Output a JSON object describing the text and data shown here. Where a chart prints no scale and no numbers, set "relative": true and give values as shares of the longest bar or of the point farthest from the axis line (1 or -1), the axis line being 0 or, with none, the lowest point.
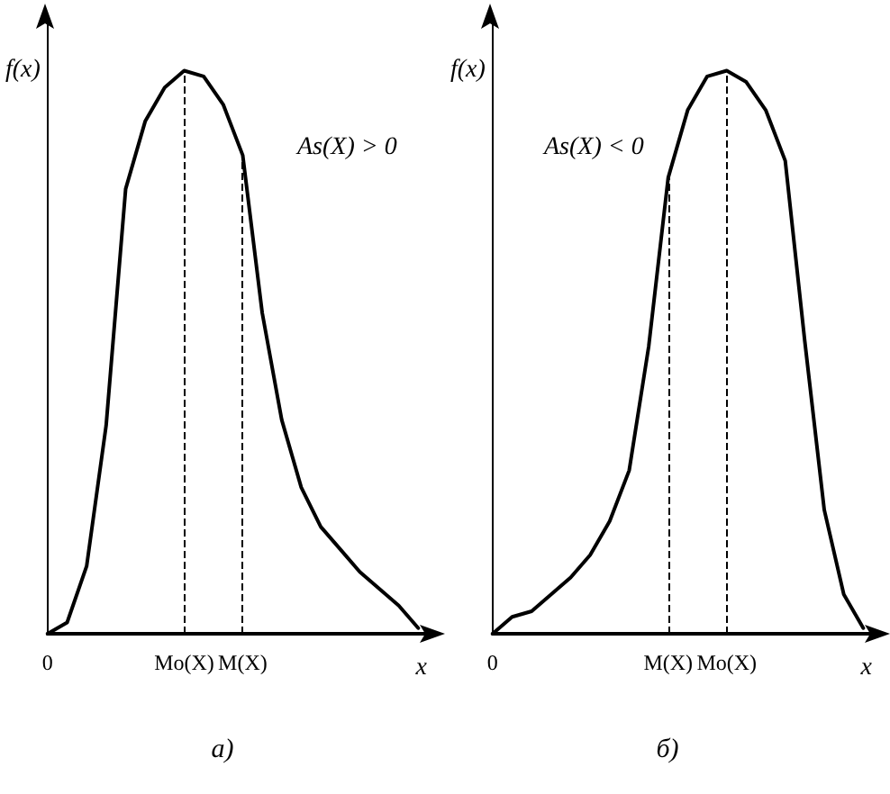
{
  "chart_data": [
    {
      "type": "line",
      "title": "a)",
      "xlabel": "x",
      "ylabel": "f(x)",
      "relative": true,
      "tick_labels": "x",
      "marker": "none",
      "line_style": "solid",
      "categories": [
        "0",
        null,
        null,
        null,
        null,
        null,
        null,
        "Mo(X)",
        null,
        null,
        "M(X)",
        null,
        null,
        null,
        null,
        null,
        null,
        null,
        null,
        null,
        null
      ],
      "series": [
        {
          "color": "#000000",
          "values": [
            0,
            0.02,
            0.12,
            0.37,
            0.79,
            0.91,
            0.97,
            1,
            0.99,
            0.94,
            0.85,
            0.57,
            0.38,
            0.26,
            0.19,
            0.15,
            0.11,
            0.08,
            0.05,
            0.01,
            null
          ]
        }
      ],
      "ref_lines": [
        {
          "axis": "x",
          "value": "Mo(X)",
          "line_style": "dashed",
          "color": "#000000"
        },
        {
          "axis": "x",
          "value": "M(X)",
          "line_style": "dashed",
          "color": "#000000"
        }
      ],
      "annotations": [
        "As(X) > 0"
      ]
    },
    {
      "type": "line",
      "title": "б)",
      "xlabel": "x",
      "ylabel": "f(x)",
      "relative": true,
      "tick_labels": "x",
      "marker": "none",
      "line_style": "solid",
      "categories": [
        "0",
        null,
        null,
        null,
        null,
        null,
        null,
        null,
        null,
        "M(X)",
        null,
        null,
        "Mo(X)",
        null,
        null,
        null,
        null,
        null,
        null,
        null,
        null
      ],
      "series": [
        {
          "color": "#000000",
          "values": [
            0,
            0.03,
            0.04,
            0.07,
            0.1,
            0.14,
            0.2,
            0.29,
            0.51,
            0.81,
            0.93,
            0.99,
            1,
            0.98,
            0.93,
            0.84,
            0.52,
            0.22,
            0.07,
            0.01,
            null
          ]
        }
      ],
      "ref_lines": [
        {
          "axis": "x",
          "value": "M(X)",
          "line_style": "dashed",
          "color": "#000000"
        },
        {
          "axis": "x",
          "value": "Mo(X)",
          "line_style": "dashed",
          "color": "#000000"
        }
      ],
      "annotations": [
        "As(X) < 0"
      ]
    }
  ]
}
